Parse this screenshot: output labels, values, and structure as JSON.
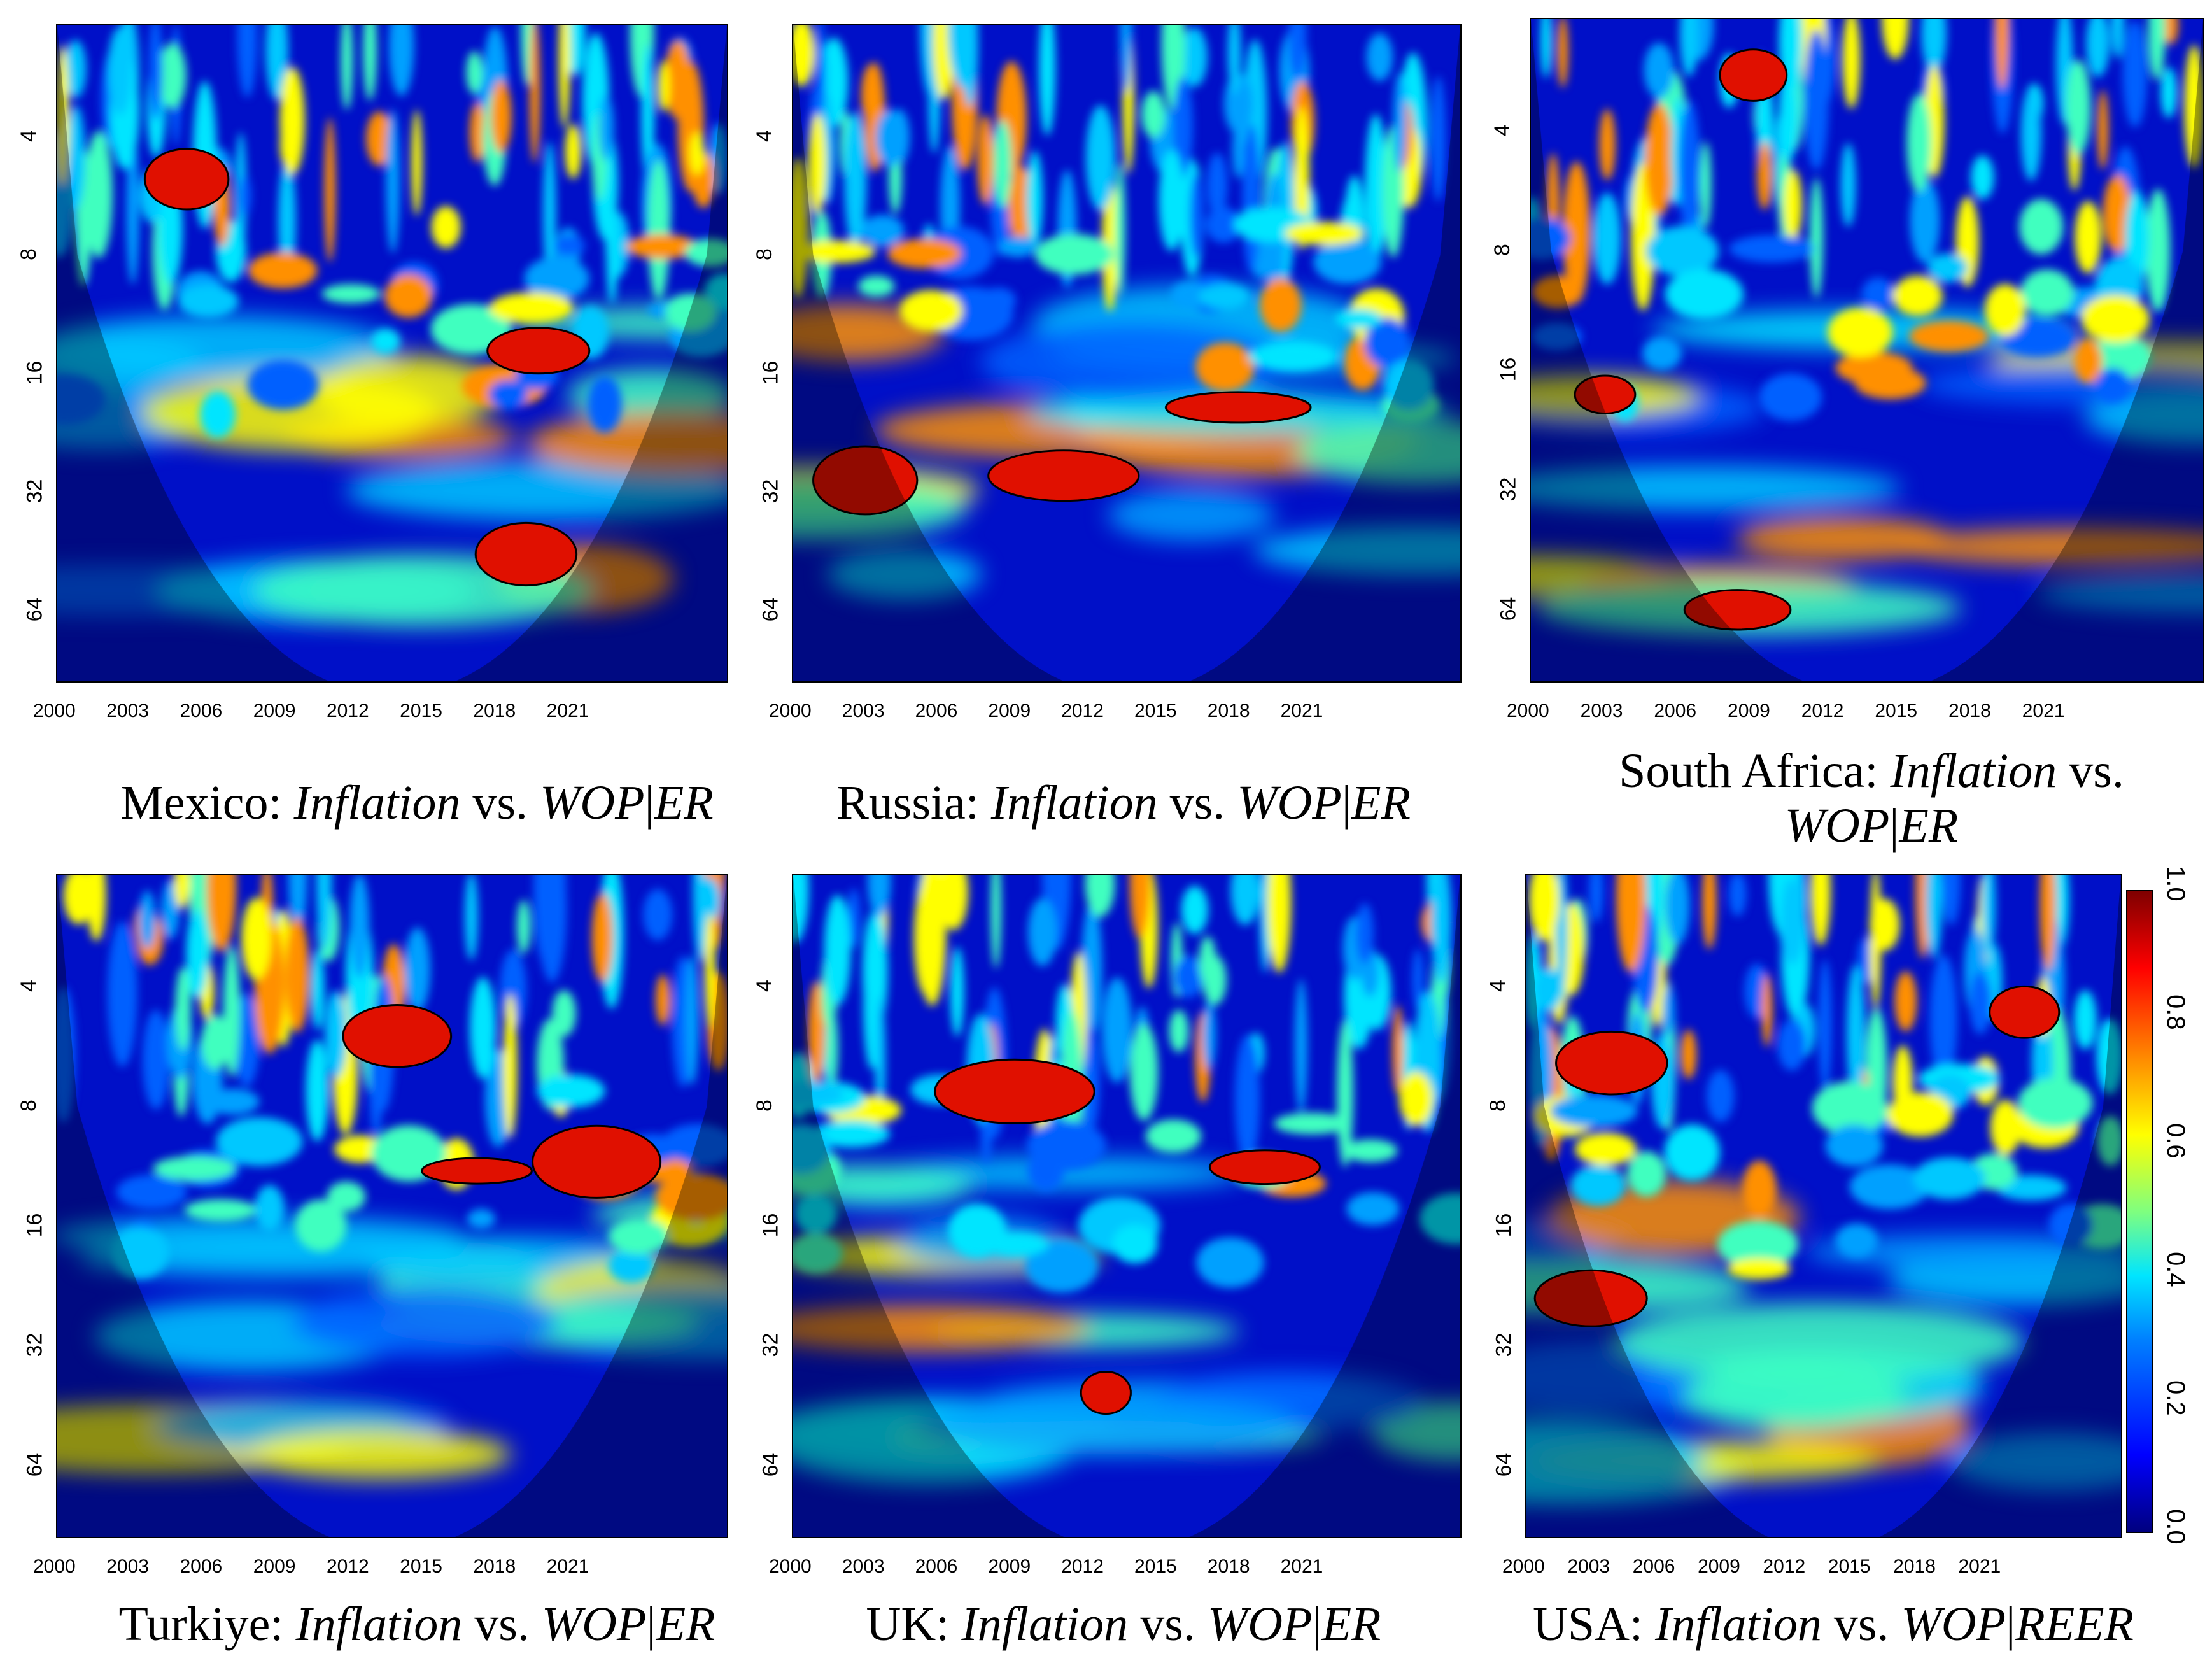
{
  "chart_data": [
    {
      "type": "heatmap",
      "caption_country": "Mexico:",
      "caption_var1": "Inflation",
      "caption_vs": "vs.",
      "caption_var2": "WOP",
      "caption_sep": "|",
      "caption_var3": "ER",
      "x_ticks": [
        "2000",
        "2003",
        "2006",
        "2009",
        "2012",
        "2015",
        "2018",
        "2021"
      ],
      "y_ticks": [
        "4",
        "8",
        "16",
        "32",
        "64"
      ]
    },
    {
      "type": "heatmap",
      "caption_country": "Russia:",
      "caption_var1": "Inflation",
      "caption_vs": "vs.",
      "caption_var2": "WOP",
      "caption_sep": "|",
      "caption_var3": "ER",
      "x_ticks": [
        "2000",
        "2003",
        "2006",
        "2009",
        "2012",
        "2015",
        "2018",
        "2021"
      ],
      "y_ticks": [
        "4",
        "8",
        "16",
        "32",
        "64"
      ]
    },
    {
      "type": "heatmap",
      "caption_country": "South Africa:",
      "caption_var1": "Inflation",
      "caption_vs": "vs.",
      "caption_var2": "WOP",
      "caption_sep": "|",
      "caption_var3": "ER",
      "x_ticks": [
        "2000",
        "2003",
        "2006",
        "2009",
        "2012",
        "2015",
        "2018",
        "2021"
      ],
      "y_ticks": [
        "4",
        "8",
        "16",
        "32",
        "64"
      ]
    },
    {
      "type": "heatmap",
      "caption_country": "Turkiye:",
      "caption_var1": "Inflation",
      "caption_vs": "vs.",
      "caption_var2": "WOP",
      "caption_sep": "|",
      "caption_var3": "ER",
      "x_ticks": [
        "2000",
        "2003",
        "2006",
        "2009",
        "2012",
        "2015",
        "2018",
        "2021"
      ],
      "y_ticks": [
        "4",
        "8",
        "16",
        "32",
        "64"
      ]
    },
    {
      "type": "heatmap",
      "caption_country": "UK:",
      "caption_var1": "Inflation",
      "caption_vs": "vs.",
      "caption_var2": "WOP",
      "caption_sep": "|",
      "caption_var3": "ER",
      "x_ticks": [
        "2000",
        "2003",
        "2006",
        "2009",
        "2012",
        "2015",
        "2018",
        "2021"
      ],
      "y_ticks": [
        "4",
        "8",
        "16",
        "32",
        "64"
      ]
    },
    {
      "type": "heatmap",
      "caption_country": "USA:",
      "caption_var1": "Inflation",
      "caption_vs": "vs.",
      "caption_var2": "WOP",
      "caption_sep": "|",
      "caption_var3": "REER",
      "x_ticks": [
        "2000",
        "2003",
        "2006",
        "2009",
        "2012",
        "2015",
        "2018",
        "2021"
      ],
      "y_ticks": [
        "4",
        "8",
        "16",
        "32",
        "64"
      ]
    }
  ],
  "colorbar": {
    "ticks": [
      "0.0",
      "0.2",
      "0.4",
      "0.6",
      "0.8",
      "1.0"
    ],
    "range": [
      0,
      1
    ]
  }
}
